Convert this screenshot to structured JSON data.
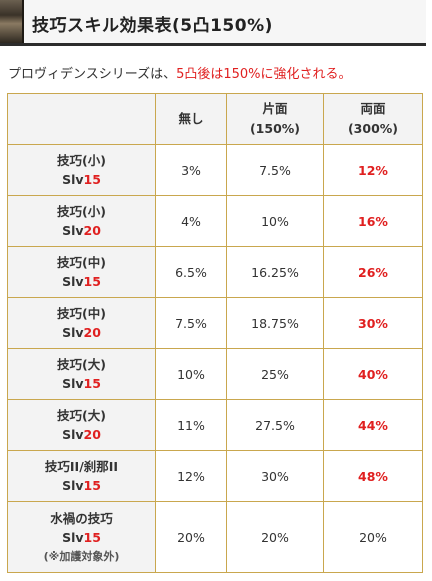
{
  "section": {
    "title": "技巧スキル効果表(5凸150%)"
  },
  "intro": {
    "prefix": "プロヴィデンスシリーズは、",
    "highlight": "5凸後は150%に強化される。"
  },
  "table": {
    "headers": [
      {
        "line1": "無し",
        "line2": ""
      },
      {
        "line1": "片面",
        "line2": "(150%)"
      },
      {
        "line1": "両面",
        "line2": "(300%)"
      }
    ],
    "rows": [
      {
        "skill": "技巧(小)",
        "slv_prefix": "Slv",
        "slv": "15",
        "note": "",
        "none": "3%",
        "single": "7.5%",
        "double": "12%"
      },
      {
        "skill": "技巧(小)",
        "slv_prefix": "Slv",
        "slv": "20",
        "note": "",
        "none": "4%",
        "single": "10%",
        "double": "16%"
      },
      {
        "skill": "技巧(中)",
        "slv_prefix": "Slv",
        "slv": "15",
        "note": "",
        "none": "6.5%",
        "single": "16.25%",
        "double": "26%"
      },
      {
        "skill": "技巧(中)",
        "slv_prefix": "Slv",
        "slv": "20",
        "note": "",
        "none": "7.5%",
        "single": "18.75%",
        "double": "30%"
      },
      {
        "skill": "技巧(大)",
        "slv_prefix": "Slv",
        "slv": "15",
        "note": "",
        "none": "10%",
        "single": "25%",
        "double": "40%"
      },
      {
        "skill": "技巧(大)",
        "slv_prefix": "Slv",
        "slv": "20",
        "note": "",
        "none": "11%",
        "single": "27.5%",
        "double": "44%"
      },
      {
        "skill": "技巧II/刹那II",
        "slv_prefix": "Slv",
        "slv": "15",
        "note": "",
        "none": "12%",
        "single": "30%",
        "double": "48%"
      },
      {
        "skill": "水禍の技巧",
        "slv_prefix": "Slv",
        "slv": "15",
        "note": "(※加護対象外)",
        "none": "20%",
        "single": "20%",
        "double": "20%"
      }
    ]
  },
  "colors": {
    "accent_red": "#e02020",
    "table_border": "#c9a74e",
    "header_bg": "#f3f3f3",
    "heading_bar": "#2c2c2c"
  }
}
